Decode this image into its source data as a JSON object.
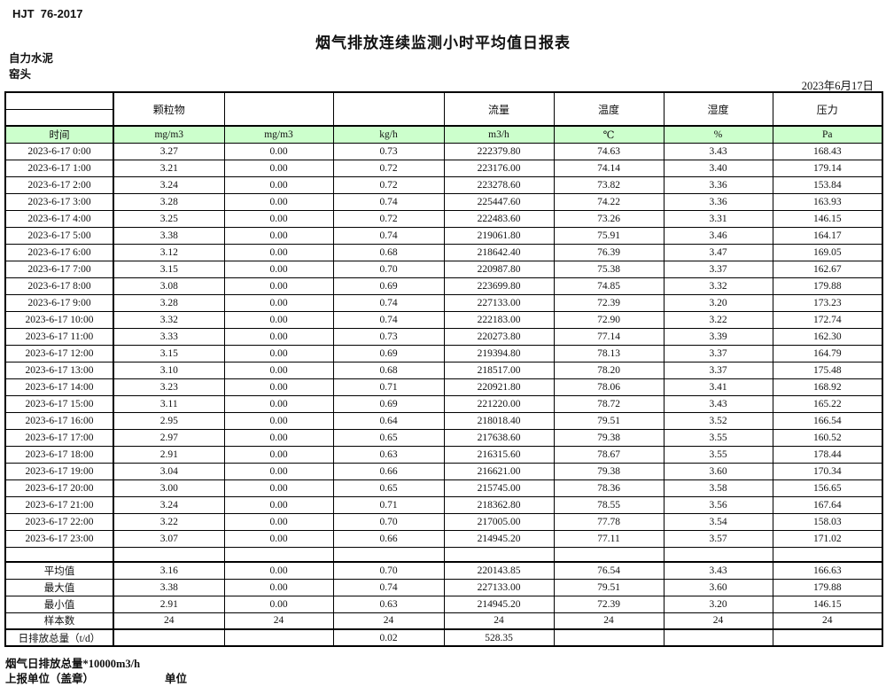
{
  "meta": {
    "standard": "HJT  76-2017",
    "title": "烟气排放连续监测小时平均值日报表",
    "company": "自力水泥",
    "location": "窑头",
    "date": "2023年6月17日"
  },
  "table": {
    "group_headers": [
      "",
      "颗粒物",
      "",
      "",
      "流量",
      "温度",
      "湿度",
      "压力"
    ],
    "unit_row": [
      "时间",
      "mg/m3",
      "mg/m3",
      "kg/h",
      "m3/h",
      "℃",
      "%",
      "Pa"
    ],
    "rows": [
      [
        "2023-6-17  0:00",
        "3.27",
        "0.00",
        "0.73",
        "222379.80",
        "74.63",
        "3.43",
        "168.43"
      ],
      [
        "2023-6-17  1:00",
        "3.21",
        "0.00",
        "0.72",
        "223176.00",
        "74.14",
        "3.40",
        "179.14"
      ],
      [
        "2023-6-17  2:00",
        "3.24",
        "0.00",
        "0.72",
        "223278.60",
        "73.82",
        "3.36",
        "153.84"
      ],
      [
        "2023-6-17  3:00",
        "3.28",
        "0.00",
        "0.74",
        "225447.60",
        "74.22",
        "3.36",
        "163.93"
      ],
      [
        "2023-6-17  4:00",
        "3.25",
        "0.00",
        "0.72",
        "222483.60",
        "73.26",
        "3.31",
        "146.15"
      ],
      [
        "2023-6-17  5:00",
        "3.38",
        "0.00",
        "0.74",
        "219061.80",
        "75.91",
        "3.46",
        "164.17"
      ],
      [
        "2023-6-17  6:00",
        "3.12",
        "0.00",
        "0.68",
        "218642.40",
        "76.39",
        "3.47",
        "169.05"
      ],
      [
        "2023-6-17  7:00",
        "3.15",
        "0.00",
        "0.70",
        "220987.80",
        "75.38",
        "3.37",
        "162.67"
      ],
      [
        "2023-6-17  8:00",
        "3.08",
        "0.00",
        "0.69",
        "223699.80",
        "74.85",
        "3.32",
        "179.88"
      ],
      [
        "2023-6-17  9:00",
        "3.28",
        "0.00",
        "0.74",
        "227133.00",
        "72.39",
        "3.20",
        "173.23"
      ],
      [
        "2023-6-17 10:00",
        "3.32",
        "0.00",
        "0.74",
        "222183.00",
        "72.90",
        "3.22",
        "172.74"
      ],
      [
        "2023-6-17 11:00",
        "3.33",
        "0.00",
        "0.73",
        "220273.80",
        "77.14",
        "3.39",
        "162.30"
      ],
      [
        "2023-6-17 12:00",
        "3.15",
        "0.00",
        "0.69",
        "219394.80",
        "78.13",
        "3.37",
        "164.79"
      ],
      [
        "2023-6-17 13:00",
        "3.10",
        "0.00",
        "0.68",
        "218517.00",
        "78.20",
        "3.37",
        "175.48"
      ],
      [
        "2023-6-17 14:00",
        "3.23",
        "0.00",
        "0.71",
        "220921.80",
        "78.06",
        "3.41",
        "168.92"
      ],
      [
        "2023-6-17 15:00",
        "3.11",
        "0.00",
        "0.69",
        "221220.00",
        "78.72",
        "3.43",
        "165.22"
      ],
      [
        "2023-6-17 16:00",
        "2.95",
        "0.00",
        "0.64",
        "218018.40",
        "79.51",
        "3.52",
        "166.54"
      ],
      [
        "2023-6-17 17:00",
        "2.97",
        "0.00",
        "0.65",
        "217638.60",
        "79.38",
        "3.55",
        "160.52"
      ],
      [
        "2023-6-17 18:00",
        "2.91",
        "0.00",
        "0.63",
        "216315.60",
        "78.67",
        "3.55",
        "178.44"
      ],
      [
        "2023-6-17 19:00",
        "3.04",
        "0.00",
        "0.66",
        "216621.00",
        "79.38",
        "3.60",
        "170.34"
      ],
      [
        "2023-6-17 20:00",
        "3.00",
        "0.00",
        "0.65",
        "215745.00",
        "78.36",
        "3.58",
        "156.65"
      ],
      [
        "2023-6-17 21:00",
        "3.24",
        "0.00",
        "0.71",
        "218362.80",
        "78.55",
        "3.56",
        "167.64"
      ],
      [
        "2023-6-17 22:00",
        "3.22",
        "0.00",
        "0.70",
        "217005.00",
        "77.78",
        "3.54",
        "158.03"
      ],
      [
        "2023-6-17 23:00",
        "3.07",
        "0.00",
        "0.66",
        "214945.20",
        "77.11",
        "3.57",
        "171.02"
      ]
    ],
    "summary": [
      [
        "平均值",
        "3.16",
        "0.00",
        "0.70",
        "220143.85",
        "76.54",
        "3.43",
        "166.63"
      ],
      [
        "最大值",
        "3.38",
        "0.00",
        "0.74",
        "227133.00",
        "79.51",
        "3.60",
        "179.88"
      ],
      [
        "最小值",
        "2.91",
        "0.00",
        "0.63",
        "214945.20",
        "72.39",
        "3.20",
        "146.15"
      ],
      [
        "样本数",
        "24",
        "24",
        "24",
        "24",
        "24",
        "24",
        "24"
      ]
    ],
    "total_row": [
      "日排放总量（t/d）",
      "",
      "",
      "0.02",
      "528.35",
      "",
      "",
      ""
    ]
  },
  "footer": {
    "note": "烟气日排放总量*10000m3/h",
    "report_unit_label": "上报单位（盖章）",
    "unit_label": "单位"
  },
  "colors": {
    "header_green": "#ccffcc"
  }
}
